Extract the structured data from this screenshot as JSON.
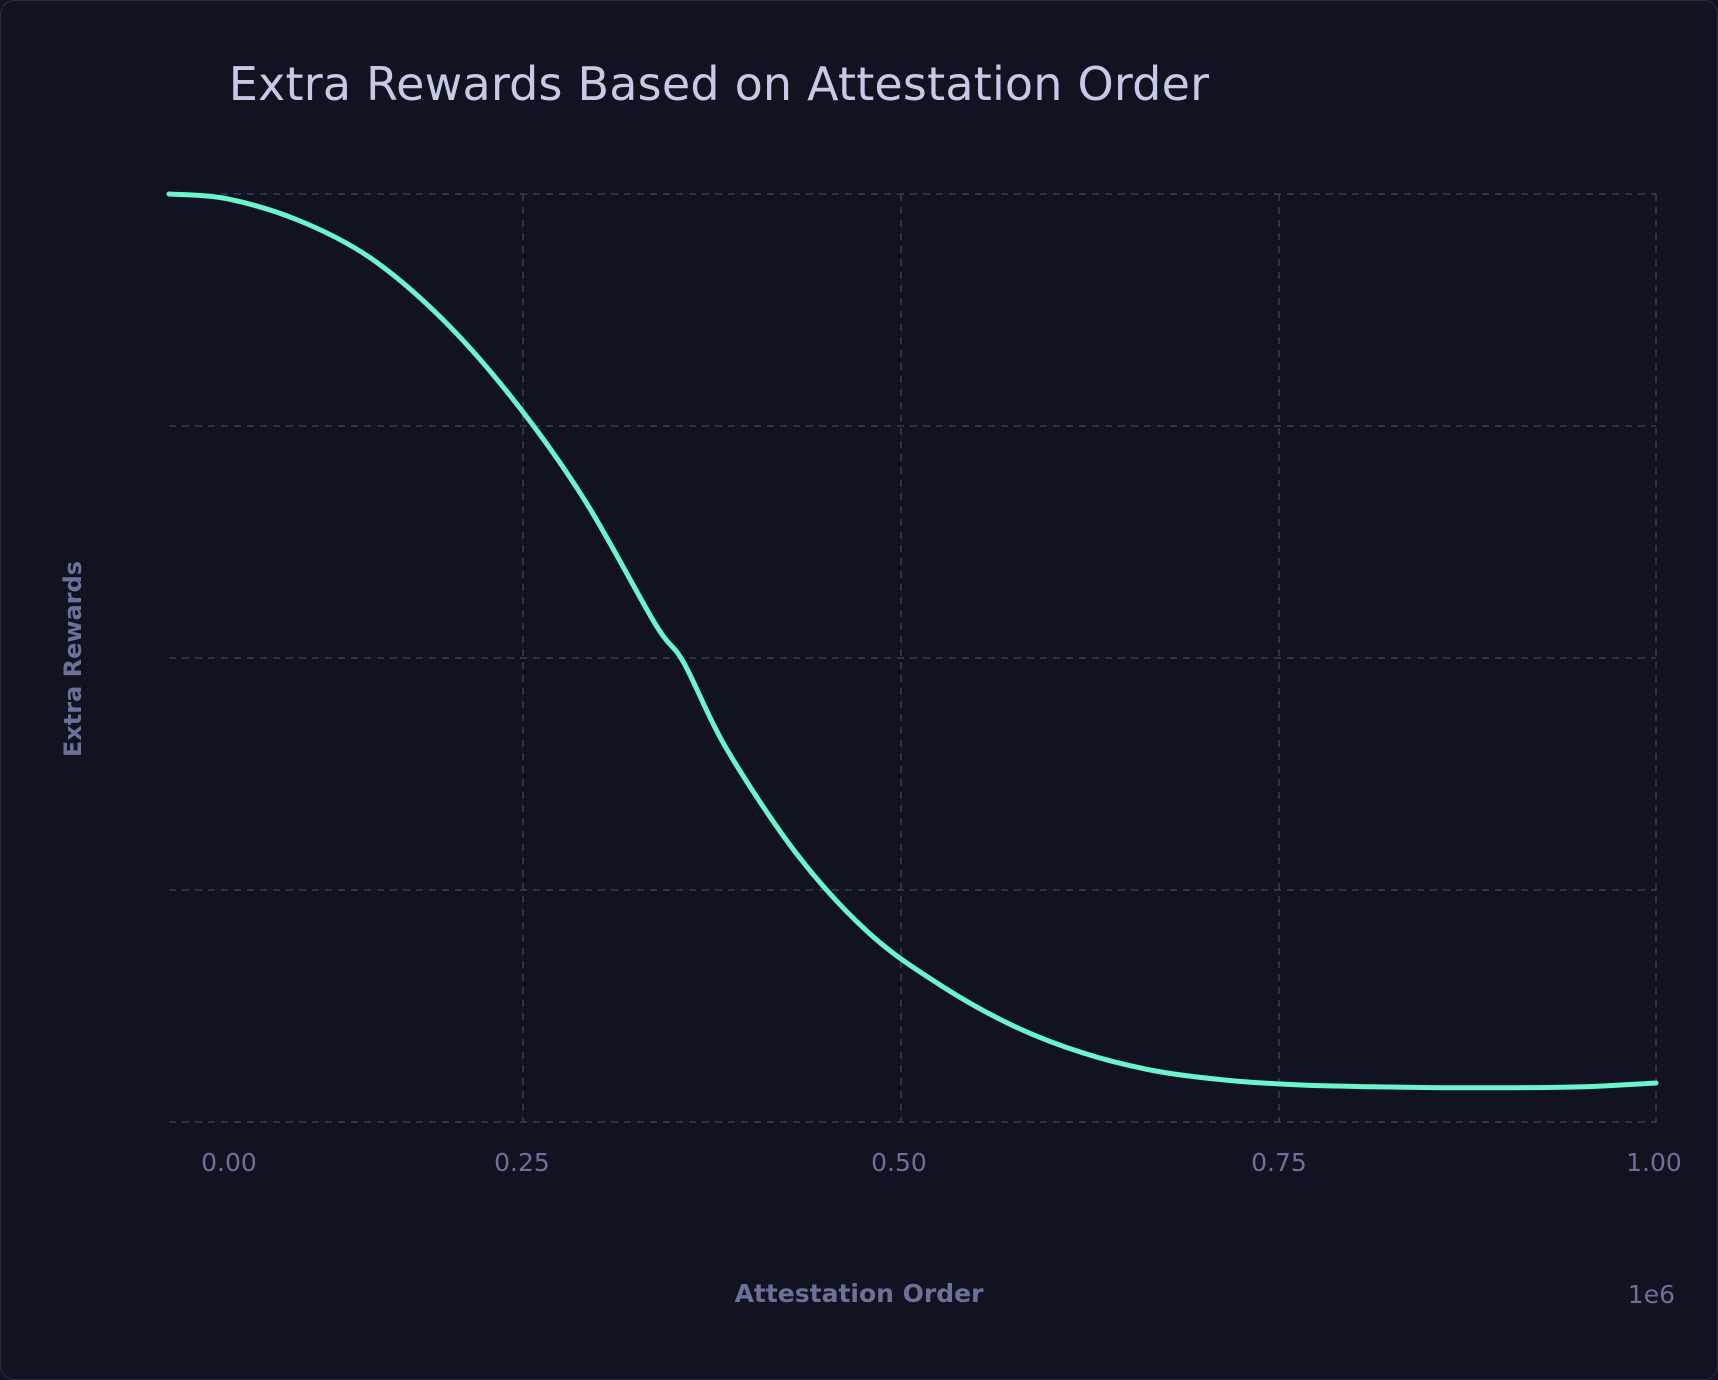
{
  "colors": {
    "background": "#121320",
    "line": "#6af5cc",
    "grid": "#3a3c58",
    "title": "#c5cae6",
    "axis_text": "#6b7199"
  },
  "chart_data": {
    "type": "line",
    "title": "Extra Rewards Based on Attestation Order",
    "xlabel": "Attestation Order",
    "ylabel": "Extra Rewards",
    "x_offset_label": "1e6",
    "x_tick_labels": [
      "0.00",
      "0.25",
      "0.50",
      "0.75",
      "1.00"
    ],
    "y_tick_labels": [],
    "xlim": [
      -0.04,
      1.0
    ],
    "ylim": [
      0,
      1
    ],
    "grid": true,
    "legend": "none",
    "series": [
      {
        "x": [
          -0.04,
          0.0,
          0.05,
          0.1,
          0.15,
          0.2,
          0.25,
          0.3,
          0.32,
          0.35,
          0.4,
          0.45,
          0.5,
          0.55,
          0.6,
          0.65,
          0.7,
          0.75,
          0.8,
          0.85,
          0.9,
          0.95,
          1.0
        ],
        "y": [
          1.0,
          0.995,
          0.972,
          0.932,
          0.867,
          0.78,
          0.672,
          0.537,
          0.495,
          0.402,
          0.287,
          0.203,
          0.147,
          0.104,
          0.074,
          0.055,
          0.045,
          0.04,
          0.038,
          0.037,
          0.037,
          0.038,
          0.042
        ]
      }
    ]
  }
}
